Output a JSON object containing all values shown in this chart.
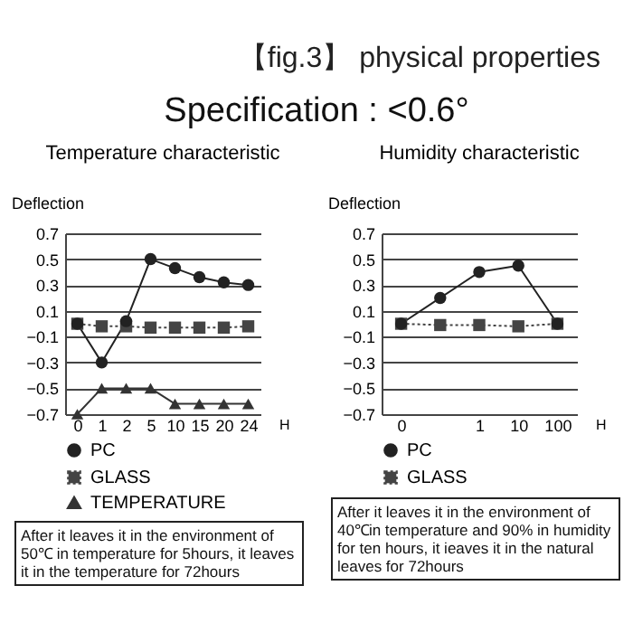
{
  "chart_data": [
    {
      "type": "other",
      "title": "【fig.3】 physical properties",
      "subtitle": "Specification : <0.6°"
    },
    {
      "type": "line",
      "title": "Temperature characteristic",
      "ylabel": "Deflection",
      "xlabel": "H",
      "categories": [
        "0",
        "1",
        "2",
        "5",
        "10",
        "15",
        "20",
        "24"
      ],
      "ylim": [
        -0.7,
        0.7
      ],
      "yticks": [
        -0.7,
        -0.5,
        -0.3,
        -0.1,
        0.1,
        0.3,
        0.5,
        0.7
      ],
      "grid": "y",
      "legend": "bottom",
      "series": [
        {
          "name": "PC",
          "color": "#222222",
          "marker": "circle",
          "line_style": "solid",
          "values": [
            0,
            -0.3,
            0.02,
            0.5,
            0.43,
            0.36,
            0.32,
            0.3
          ]
        },
        {
          "name": "GLASS",
          "color": "#444444",
          "marker": "square",
          "line_style": "dotted",
          "values": [
            0,
            -0.02,
            -0.02,
            -0.03,
            -0.03,
            -0.03,
            -0.03,
            -0.02
          ]
        },
        {
          "name": "TEMPERATURE",
          "color": "#333333",
          "marker": "triangle",
          "line_style": "solid",
          "values": [
            -0.7,
            -0.5,
            -0.5,
            -0.5,
            -0.62,
            -0.62,
            -0.62,
            -0.62
          ]
        }
      ],
      "annotations": [
        "After it leaves it in the environment of 50℃ in temperature for  5hours, it leaves it in the temperature for 72hours"
      ]
    },
    {
      "type": "line",
      "title": "Humidity characteristic",
      "ylabel": "Deflection",
      "xlabel": "H",
      "categories": [
        "0",
        null,
        "1",
        "10",
        "100"
      ],
      "ylim": [
        -0.7,
        0.7
      ],
      "yticks": [
        -0.7,
        -0.5,
        -0.3,
        -0.1,
        0.1,
        0.3,
        0.5,
        0.7
      ],
      "grid": "y",
      "legend": "bottom",
      "series": [
        {
          "name": "PC",
          "color": "#222222",
          "marker": "circle",
          "line_style": "solid",
          "values": [
            0,
            0.2,
            0.4,
            0.45,
            0
          ]
        },
        {
          "name": "GLASS",
          "color": "#444444",
          "marker": "square",
          "line_style": "dotted",
          "values": [
            0,
            -0.01,
            -0.01,
            -0.02,
            0
          ]
        }
      ],
      "annotations": [
        "After it leaves it in the environment of 40℃in temperature and  90% in humidity for ten hours, it  ieaves it in the natural leaves for 72hours"
      ]
    }
  ]
}
